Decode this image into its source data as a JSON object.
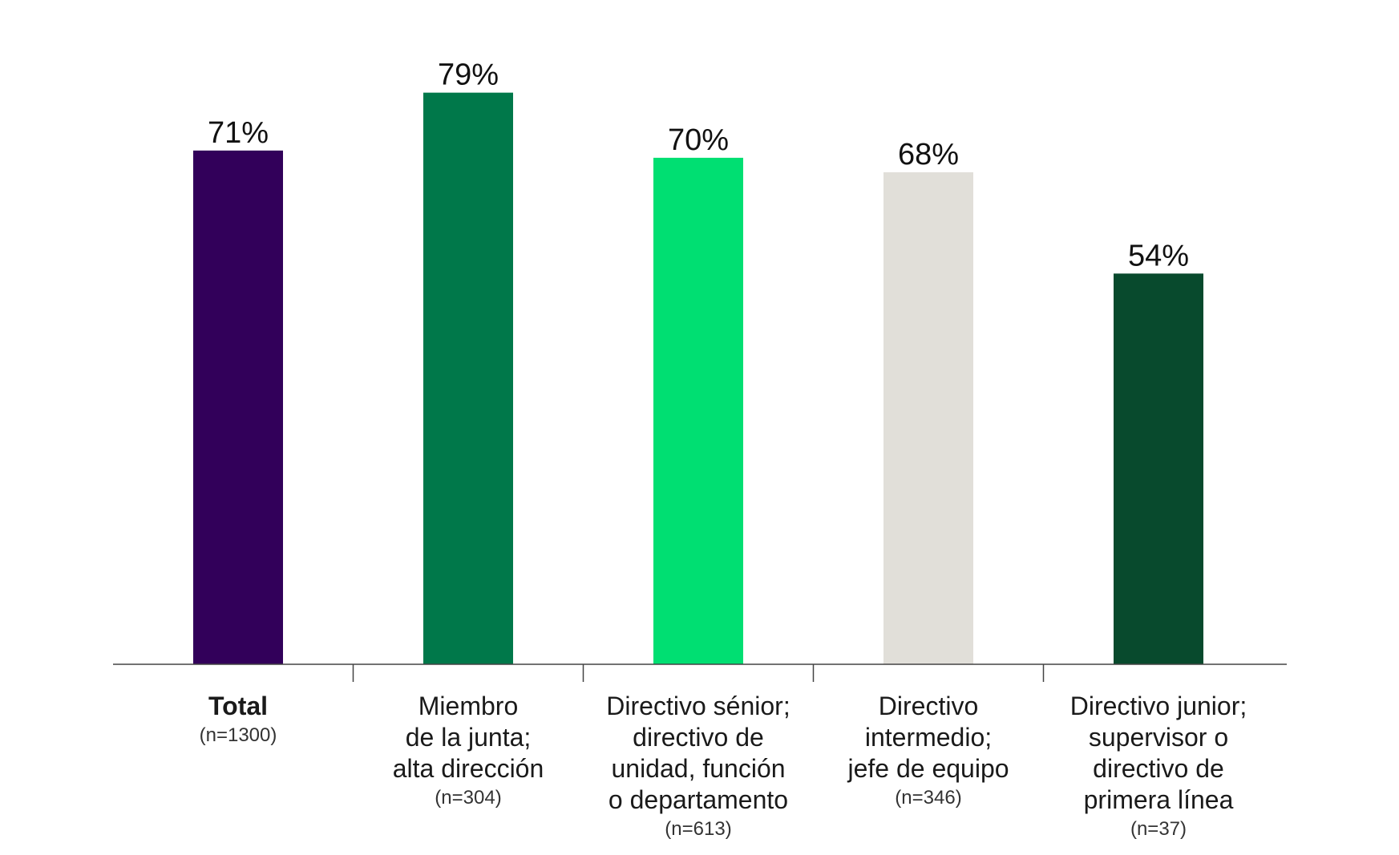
{
  "chart_data": {
    "type": "bar",
    "categories": [
      "Total",
      "Miembro\nde la junta;\nalta dirección",
      "Directivo sénior;\ndirectivo de\nunidad, función\no departamento",
      "Directivo\nintermedio;\njefe de equipo",
      "Directivo junior;\nsupervisor o\ndirectivo de\nprimera línea"
    ],
    "sample_sizes": [
      "(n=1300)",
      "(n=304)",
      "(n=613)",
      "(n=346)",
      "(n=37)"
    ],
    "values": [
      71,
      79,
      70,
      68,
      54
    ],
    "value_labels": [
      "71%",
      "79%",
      "70%",
      "68%",
      "54%"
    ],
    "colors": [
      "#32005a",
      "#00784a",
      "#00df72",
      "#e1dfd9",
      "#084a2d"
    ],
    "ylim": [
      0,
      100
    ],
    "grid": false,
    "legend": "none"
  }
}
